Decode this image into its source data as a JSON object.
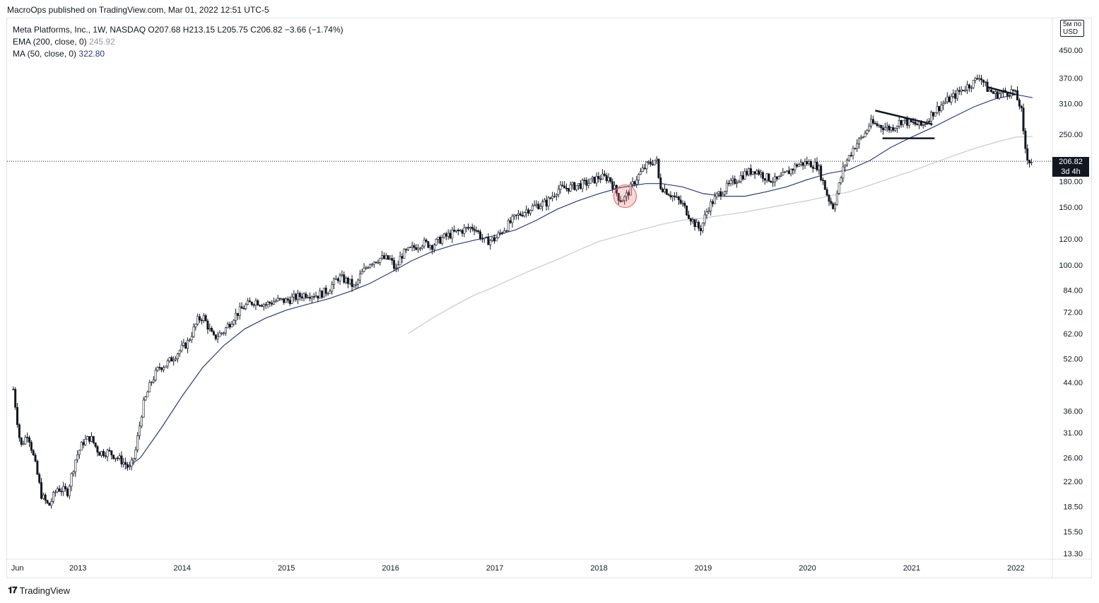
{
  "header": {
    "published": "MacroOps published on TradingView.com, Mar 01, 2022 12:51 UTC-5"
  },
  "legend": {
    "symbol_line": "Meta Platforms, Inc., 1W, NASDAQ",
    "ohlc": "O207.68  H213.15  L205.75  C206.82  −3.66 (−1.74%)",
    "ema_label": "EMA (200, close, 0)",
    "ema_value": "245.92",
    "ma_label": "MA (50, close, 0)",
    "ma_value": "322.80"
  },
  "price_box": {
    "price": "206.82",
    "countdown": "3d 4h"
  },
  "unit_box": {
    "line1": "5м по",
    "line2": "USD"
  },
  "footer": {
    "brand": "TradingView"
  },
  "colors": {
    "candle": "#131722",
    "ma50": "#2a3d7a",
    "ema200": "#c7c9d0",
    "circle": "#e57373",
    "bg": "#ffffff"
  },
  "chart_data": {
    "type": "candlestick",
    "scale": "log",
    "ylim": [
      13.3,
      550
    ],
    "y_ticks": [
      "450.00",
      "370.00",
      "310.00",
      "250.00",
      "180.00",
      "150.00",
      "120.00",
      "100.00",
      "84.00",
      "72.00",
      "62.00",
      "52.00",
      "44.00",
      "36.00",
      "31.00",
      "26.00",
      "22.00",
      "18.50",
      "15.50",
      "13.30"
    ],
    "x_ticks": [
      "Jun",
      "2013",
      "2014",
      "2015",
      "2016",
      "2017",
      "2018",
      "2019",
      "2020",
      "2021",
      "2022"
    ],
    "x_tick_dates": [
      2012.42,
      2013.0,
      2014.0,
      2015.0,
      2016.0,
      2017.0,
      2018.0,
      2019.0,
      2020.0,
      2021.0,
      2022.0
    ],
    "last_price": 206.82,
    "price_series": {
      "name": "Meta Platforms, Inc.",
      "points": [
        [
          2012.38,
          42
        ],
        [
          2012.45,
          28
        ],
        [
          2012.52,
          31
        ],
        [
          2012.6,
          24
        ],
        [
          2012.65,
          20
        ],
        [
          2012.72,
          18.5
        ],
        [
          2012.8,
          21
        ],
        [
          2012.9,
          20.5
        ],
        [
          2012.98,
          26
        ],
        [
          2013.05,
          29
        ],
        [
          2013.12,
          30
        ],
        [
          2013.2,
          27
        ],
        [
          2013.3,
          27
        ],
        [
          2013.38,
          26
        ],
        [
          2013.45,
          25
        ],
        [
          2013.5,
          24
        ],
        [
          2013.55,
          27
        ],
        [
          2013.62,
          37
        ],
        [
          2013.7,
          44
        ],
        [
          2013.78,
          49
        ],
        [
          2013.85,
          50
        ],
        [
          2013.95,
          54
        ],
        [
          2014.05,
          58
        ],
        [
          2014.15,
          68
        ],
        [
          2014.2,
          70
        ],
        [
          2014.3,
          60
        ],
        [
          2014.4,
          63
        ],
        [
          2014.5,
          70
        ],
        [
          2014.6,
          75
        ],
        [
          2014.7,
          78
        ],
        [
          2014.8,
          76
        ],
        [
          2014.9,
          78
        ],
        [
          2015.0,
          78
        ],
        [
          2015.1,
          80
        ],
        [
          2015.2,
          82
        ],
        [
          2015.3,
          81
        ],
        [
          2015.4,
          84
        ],
        [
          2015.5,
          92
        ],
        [
          2015.6,
          89
        ],
        [
          2015.66,
          85
        ],
        [
          2015.7,
          92
        ],
        [
          2015.8,
          102
        ],
        [
          2015.9,
          105
        ],
        [
          2016.0,
          104
        ],
        [
          2016.05,
          96
        ],
        [
          2016.1,
          107
        ],
        [
          2016.2,
          112
        ],
        [
          2016.3,
          117
        ],
        [
          2016.4,
          115
        ],
        [
          2016.5,
          121
        ],
        [
          2016.6,
          125
        ],
        [
          2016.7,
          128
        ],
        [
          2016.8,
          131
        ],
        [
          2016.9,
          118
        ],
        [
          2017.0,
          120
        ],
        [
          2017.1,
          130
        ],
        [
          2017.2,
          140
        ],
        [
          2017.3,
          147
        ],
        [
          2017.4,
          152
        ],
        [
          2017.5,
          155
        ],
        [
          2017.6,
          170
        ],
        [
          2017.7,
          172
        ],
        [
          2017.8,
          175
        ],
        [
          2017.9,
          178
        ],
        [
          2018.0,
          185
        ],
        [
          2018.1,
          184
        ],
        [
          2018.2,
          158
        ],
        [
          2018.25,
          160
        ],
        [
          2018.35,
          182
        ],
        [
          2018.45,
          200
        ],
        [
          2018.55,
          210
        ],
        [
          2018.58,
          175
        ],
        [
          2018.7,
          163
        ],
        [
          2018.8,
          153
        ],
        [
          2018.9,
          136
        ],
        [
          2018.97,
          128
        ],
        [
          2019.05,
          150
        ],
        [
          2019.15,
          165
        ],
        [
          2019.3,
          180
        ],
        [
          2019.4,
          190
        ],
        [
          2019.5,
          195
        ],
        [
          2019.6,
          185
        ],
        [
          2019.7,
          180
        ],
        [
          2019.8,
          190
        ],
        [
          2019.9,
          202
        ],
        [
          2020.0,
          205
        ],
        [
          2020.1,
          200
        ],
        [
          2020.2,
          160
        ],
        [
          2020.25,
          150
        ],
        [
          2020.35,
          200
        ],
        [
          2020.45,
          230
        ],
        [
          2020.55,
          250
        ],
        [
          2020.6,
          270
        ],
        [
          2020.7,
          265
        ],
        [
          2020.8,
          260
        ],
        [
          2020.9,
          275
        ],
        [
          2021.0,
          270
        ],
        [
          2021.1,
          265
        ],
        [
          2021.2,
          290
        ],
        [
          2021.3,
          310
        ],
        [
          2021.4,
          325
        ],
        [
          2021.5,
          345
        ],
        [
          2021.6,
          360
        ],
        [
          2021.65,
          378
        ],
        [
          2021.72,
          345
        ],
        [
          2021.8,
          330
        ],
        [
          2021.9,
          335
        ],
        [
          2021.98,
          338
        ],
        [
          2022.05,
          300
        ],
        [
          2022.08,
          235
        ],
        [
          2022.12,
          207
        ],
        [
          2022.16,
          206.82
        ]
      ]
    },
    "ma50_series": {
      "name": "MA (50, close, 0)",
      "points": [
        [
          2013.45,
          24
        ],
        [
          2013.6,
          26
        ],
        [
          2013.8,
          32
        ],
        [
          2014.0,
          40
        ],
        [
          2014.2,
          49
        ],
        [
          2014.4,
          57
        ],
        [
          2014.6,
          64
        ],
        [
          2014.8,
          69
        ],
        [
          2015.0,
          73
        ],
        [
          2015.2,
          76
        ],
        [
          2015.4,
          79
        ],
        [
          2015.6,
          83
        ],
        [
          2015.8,
          88
        ],
        [
          2016.0,
          95
        ],
        [
          2016.2,
          103
        ],
        [
          2016.4,
          110
        ],
        [
          2016.6,
          115
        ],
        [
          2016.8,
          119
        ],
        [
          2017.0,
          123
        ],
        [
          2017.2,
          128
        ],
        [
          2017.4,
          137
        ],
        [
          2017.6,
          148
        ],
        [
          2017.8,
          157
        ],
        [
          2018.0,
          165
        ],
        [
          2018.2,
          172
        ],
        [
          2018.45,
          177
        ],
        [
          2018.6,
          177
        ],
        [
          2018.8,
          173
        ],
        [
          2019.0,
          165
        ],
        [
          2019.2,
          162
        ],
        [
          2019.4,
          162
        ],
        [
          2019.6,
          167
        ],
        [
          2019.8,
          173
        ],
        [
          2020.0,
          182
        ],
        [
          2020.2,
          190
        ],
        [
          2020.4,
          195
        ],
        [
          2020.6,
          208
        ],
        [
          2020.8,
          228
        ],
        [
          2021.0,
          245
        ],
        [
          2021.2,
          262
        ],
        [
          2021.4,
          282
        ],
        [
          2021.6,
          303
        ],
        [
          2021.8,
          320
        ],
        [
          2022.0,
          330
        ],
        [
          2022.16,
          322.8
        ]
      ]
    },
    "ema200_series": {
      "name": "EMA (200, close, 0)",
      "points": [
        [
          2016.17,
          62
        ],
        [
          2016.4,
          69
        ],
        [
          2016.6,
          75
        ],
        [
          2016.8,
          81
        ],
        [
          2017.0,
          86
        ],
        [
          2017.2,
          92
        ],
        [
          2017.4,
          98
        ],
        [
          2017.6,
          104
        ],
        [
          2017.8,
          111
        ],
        [
          2018.0,
          118
        ],
        [
          2018.2,
          123
        ],
        [
          2018.4,
          128
        ],
        [
          2018.6,
          133
        ],
        [
          2018.8,
          137
        ],
        [
          2019.0,
          139
        ],
        [
          2019.2,
          142
        ],
        [
          2019.4,
          145
        ],
        [
          2019.6,
          149
        ],
        [
          2019.8,
          153
        ],
        [
          2020.0,
          157
        ],
        [
          2020.2,
          162
        ],
        [
          2020.4,
          167
        ],
        [
          2020.6,
          175
        ],
        [
          2020.8,
          184
        ],
        [
          2021.0,
          193
        ],
        [
          2021.2,
          204
        ],
        [
          2021.4,
          215
        ],
        [
          2021.6,
          226
        ],
        [
          2021.8,
          236
        ],
        [
          2022.0,
          245
        ],
        [
          2022.16,
          245.92
        ]
      ]
    },
    "annotations": {
      "triangle_top": [
        [
          2020.65,
          295
        ],
        [
          2021.2,
          268
        ]
      ],
      "triangle_bottom": [
        [
          2020.72,
          243
        ],
        [
          2021.22,
          243
        ]
      ],
      "trend_2021": [
        [
          2021.72,
          348
        ],
        [
          2022.0,
          330
        ]
      ],
      "circle_center": [
        2018.25,
        162
      ]
    }
  }
}
